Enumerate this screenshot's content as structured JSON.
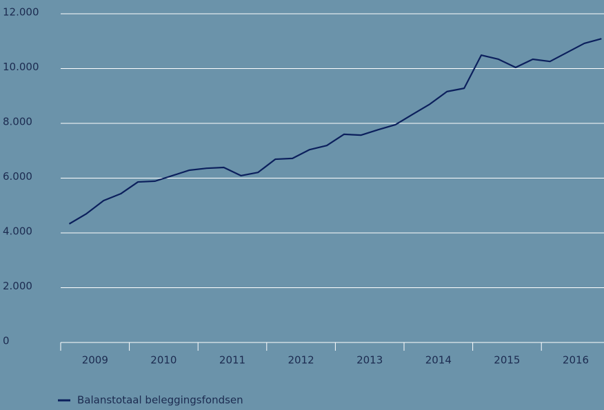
{
  "chart_data": {
    "type": "line",
    "categories": [
      null,
      "2009",
      null,
      null,
      null,
      "2010",
      null,
      null,
      null,
      "2011",
      null,
      null,
      null,
      "2012",
      null,
      null,
      null,
      "2013",
      null,
      null,
      null,
      "2014",
      null,
      null,
      null,
      "2015",
      null,
      null,
      null,
      "2016",
      null,
      null
    ],
    "series": [
      {
        "name": "Balanstotaal beleggingsfondsen",
        "color": "#0b1f5c",
        "values": [
          4330,
          4700,
          5180,
          5430,
          5860,
          5890,
          6090,
          6290,
          6360,
          6390,
          6090,
          6210,
          6690,
          6720,
          7040,
          7190,
          7600,
          7570,
          7770,
          7950,
          8330,
          8700,
          9160,
          9280,
          10490,
          10340,
          10040,
          10340,
          10260,
          10590,
          10920,
          11090
        ]
      }
    ],
    "ylim": [
      0,
      12000
    ],
    "yticks": [
      0,
      {
        "value": 2000,
        "label": "2.000"
      },
      {
        "value": 4000,
        "label": "4.000"
      },
      {
        "value": 6000,
        "label": "6.000"
      },
      {
        "value": 8000,
        "label": "8.000"
      },
      {
        "value": 10000,
        "label": "10.000"
      },
      {
        "value": 12000,
        "label": "12.000"
      }
    ],
    "grid": true
  }
}
